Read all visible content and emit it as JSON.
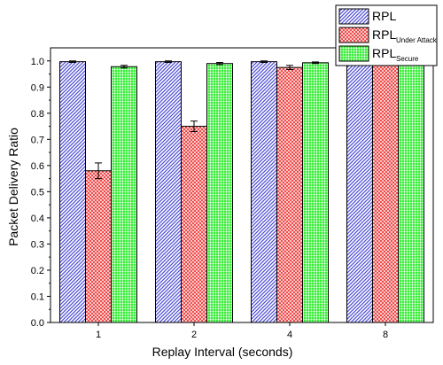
{
  "chart_data": {
    "type": "bar",
    "title": "",
    "xlabel": "Replay Interval (seconds)",
    "ylabel": "Packet Delivery Ratio",
    "categories": [
      "1",
      "2",
      "4",
      "8"
    ],
    "ylim": [
      0.0,
      1.05
    ],
    "yticks": [
      "0.0",
      "0.1",
      "0.2",
      "0.3",
      "0.4",
      "0.5",
      "0.6",
      "0.7",
      "0.8",
      "0.9",
      "1.0"
    ],
    "grid": false,
    "legend_position": "top-right",
    "series": [
      {
        "name": "RPL",
        "legend_main": "RPL",
        "legend_sub": "",
        "values": [
          0.997,
          0.997,
          0.997,
          0.997
        ],
        "errors": [
          0.003,
          0.003,
          0.003,
          0.003
        ],
        "color": "#4b4bd6",
        "pattern": "diagonal-hatch"
      },
      {
        "name": "RPL Under Attack",
        "legend_main": "RPL",
        "legend_sub": "Under Attack",
        "values": [
          0.58,
          0.75,
          0.975,
          0.99
        ],
        "errors": [
          0.03,
          0.02,
          0.008,
          0.004
        ],
        "color": "#ee3333",
        "pattern": "crosshatch"
      },
      {
        "name": "RPL Secure",
        "legend_main": "RPL",
        "legend_sub": "Secure",
        "values": [
          0.978,
          0.99,
          0.993,
          0.995
        ],
        "errors": [
          0.005,
          0.004,
          0.003,
          0.003
        ],
        "color": "#33ee33",
        "pattern": "grid"
      }
    ]
  }
}
